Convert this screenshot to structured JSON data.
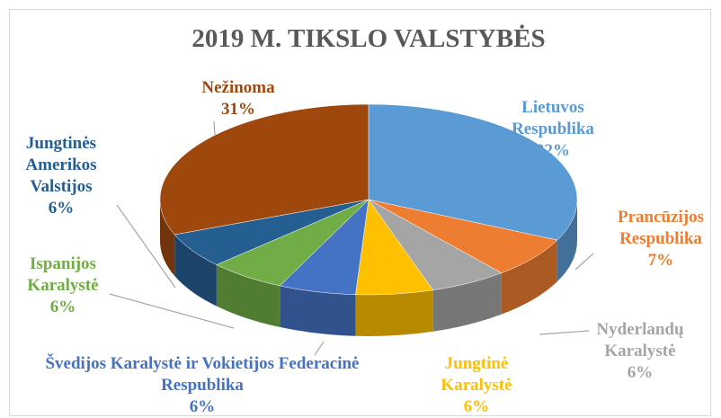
{
  "chart_data": {
    "type": "pie3d",
    "title": "2019 M. TIKSLO VALSTYBĖS",
    "categories": [
      "Lietuvos Respublika",
      "Prancūzijos Respublika",
      "Nyderlandų Karalystė",
      "Jungtinė Karalystė",
      "Švedijos Karalystė ir Vokietijos Federacinė Respublika",
      "Ispanijos Karalystė",
      "Jungtinės Amerikos Valstijos",
      "Nežinoma"
    ],
    "values": [
      32,
      7,
      6,
      6,
      6,
      6,
      6,
      31
    ],
    "value_labels": [
      "32%",
      "7%",
      "6%",
      "6%",
      "6%",
      "6%",
      "6%",
      "31%"
    ],
    "colors": [
      "#5b9bd5",
      "#ed7d31",
      "#a5a5a5",
      "#ffc000",
      "#4472c4",
      "#70ad47",
      "#255e91",
      "#9e480e"
    ]
  }
}
